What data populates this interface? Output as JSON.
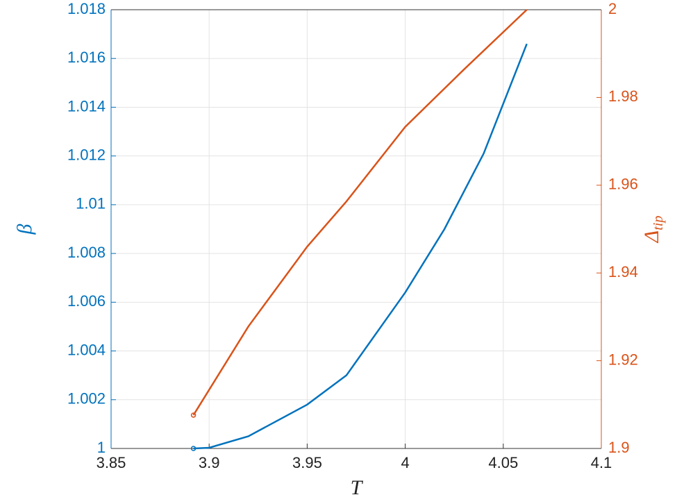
{
  "chart_data": {
    "type": "line",
    "x_label": "T",
    "y_label": "β",
    "y2_label": {
      "base": "Δ",
      "sub": "tip"
    },
    "xlim": [
      3.85,
      4.1
    ],
    "xticks": [
      3.85,
      3.9,
      3.95,
      4,
      4.05,
      4.1
    ],
    "ylim": [
      1,
      1.018
    ],
    "yticks": [
      1,
      1.002,
      1.004,
      1.006,
      1.008,
      1.01,
      1.012,
      1.014,
      1.016,
      1.018
    ],
    "y2lim": [
      1.9,
      2
    ],
    "y2ticks": [
      1.9,
      1.92,
      1.94,
      1.96,
      1.98,
      2
    ],
    "grid": true,
    "series": [
      {
        "color": "#0072BD",
        "start_marker": true,
        "x": [
          3.892,
          3.9,
          3.92,
          3.95,
          3.97,
          4.0,
          4.02,
          4.04,
          4.062
        ],
        "values": [
          1.0,
          1.00003,
          1.0005,
          1.0018,
          1.003,
          1.0064,
          1.009,
          1.0121,
          1.0166
        ]
      },
      {
        "color": "#D95319",
        "axis": "y2",
        "start_marker": true,
        "x": [
          3.892,
          3.92,
          3.95,
          3.97,
          4.0,
          4.03,
          4.062
        ],
        "values": [
          1.9076,
          1.9278,
          1.946,
          1.9563,
          1.9733,
          1.9864,
          2.0
        ]
      }
    ]
  }
}
